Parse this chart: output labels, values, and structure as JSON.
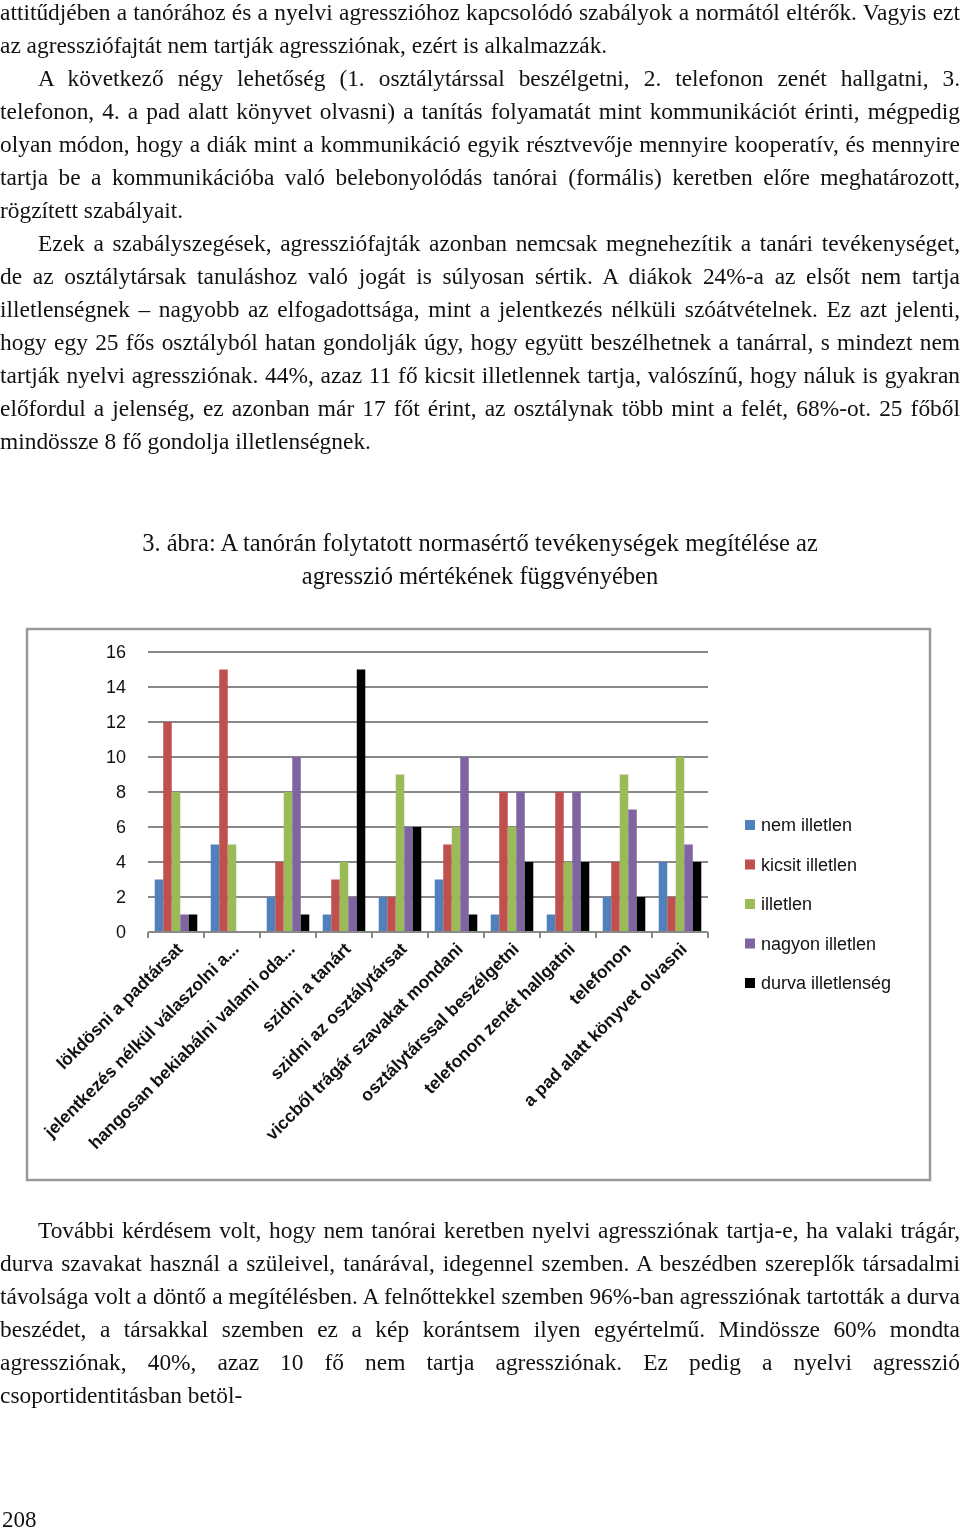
{
  "chart_data": {
    "type": "bar",
    "title": "3. ábra: A tanórán folytatott normasértő tevékenységek megítélése az agresszió mértékének függvényében",
    "categories": [
      "lökdösni a padtársat",
      "jelentkezés nélkül válaszolni a...",
      "hangosan bekiabálni valami oda...",
      "szidni a tanárt",
      "szidni az osztálytársat",
      "viccből trágár szavakat mondani",
      "osztálytárssal beszélgetni",
      "telefonon zenét hallgatni",
      "telefonon",
      "a pad alatt könyvet olvasni"
    ],
    "series": [
      {
        "name": "nem illetlen",
        "color": "#4f81bd",
        "values": [
          3,
          5,
          2,
          1,
          2,
          3,
          1,
          1,
          2,
          4
        ]
      },
      {
        "name": "kicsit illetlen",
        "color": "#c0504d",
        "values": [
          12,
          15,
          4,
          3,
          2,
          5,
          8,
          8,
          4,
          2
        ]
      },
      {
        "name": "illetlen",
        "color": "#9bbb59",
        "values": [
          8,
          5,
          8,
          4,
          9,
          6,
          6,
          4,
          9,
          10
        ]
      },
      {
        "name": "nagyon illetlen",
        "color": "#8064a2",
        "values": [
          1,
          0,
          10,
          2,
          6,
          10,
          8,
          8,
          7,
          5
        ]
      },
      {
        "name": "durva illetlenség",
        "color": "#000000",
        "values": [
          1,
          0,
          1,
          15,
          6,
          1,
          4,
          4,
          2,
          4
        ]
      }
    ],
    "ylim": [
      0,
      16
    ],
    "yticks": [
      0,
      2,
      4,
      6,
      8,
      10,
      12,
      14,
      16
    ],
    "grid": "y",
    "legend": "right",
    "annotations": [
      "attitűdjében a tanórához és a nyelvi agresszióhoz kapcsolódó szabályok a normától eltérők. Vagyis ezt az agressziófajtát nem tartják agressziónak, ezért is alkalmazzák.",
      "A következő négy lehetőség (1. osztálytárssal beszélgetni, 2. telefonon zenét hallgatni, 3. telefonon, 4. a pad alatt könyvet olvasni) a tanítás folyamatát mint kommunikációt érinti, mégpedig olyan módon, hogy a diák mint a kommunikáció egyik résztvevője mennyire kooperatív, és mennyire tartja be a kommunikációba való belebonyolódás tanórai (formális) keretben előre meghatározott, rögzített szabályait.",
      "Ezek a szabályszegések, agressziófajták azonban nemcsak megnehezítik a tanári tevékenységet, de az osztálytársak tanuláshoz való jogát is súlyosan sértik. A diákok 24%-a az elsőt nem tartja illetlenségnek – nagyobb az elfogadottsága, mint a jelentkezés nélküli szóátvételnek. Ez azt jelenti, hogy egy 25 fős osztályból hatan gondolják úgy, hogy együtt beszélhetnek a tanárral, s mindezt nem tartják nyelvi agressziónak. 44%, azaz 11 fő kicsit illetlennek tartja, valószínű, hogy náluk is gyakran előfordul a jelenség, ez azonban már 17 főt érint, az osztálynak több mint a felét, 68%-ot. 25 főből mindössze 8 fő gondolja illetlenségnek.",
      "További kérdésem volt, hogy nem tanórai keretben nyelvi agressziónak tartja-e, ha valaki trágár, durva szavakat használ a szüleivel, tanárával, idegennel szemben. A beszédben szereplők társadalmi távolsága volt a döntő a megítélésben. A felnőttekkel szemben 96%-ban agressziónak tartották a durva beszédet, a társakkal szemben ez a kép korántsem ilyen egyértelmű. Mindössze 60% mondta agressziónak, 40%, azaz 10 fő nem tartja agressziónak. Ez pedig a nyelvi agresszió csoportidentitásban betöl-",
      "208"
    ]
  }
}
